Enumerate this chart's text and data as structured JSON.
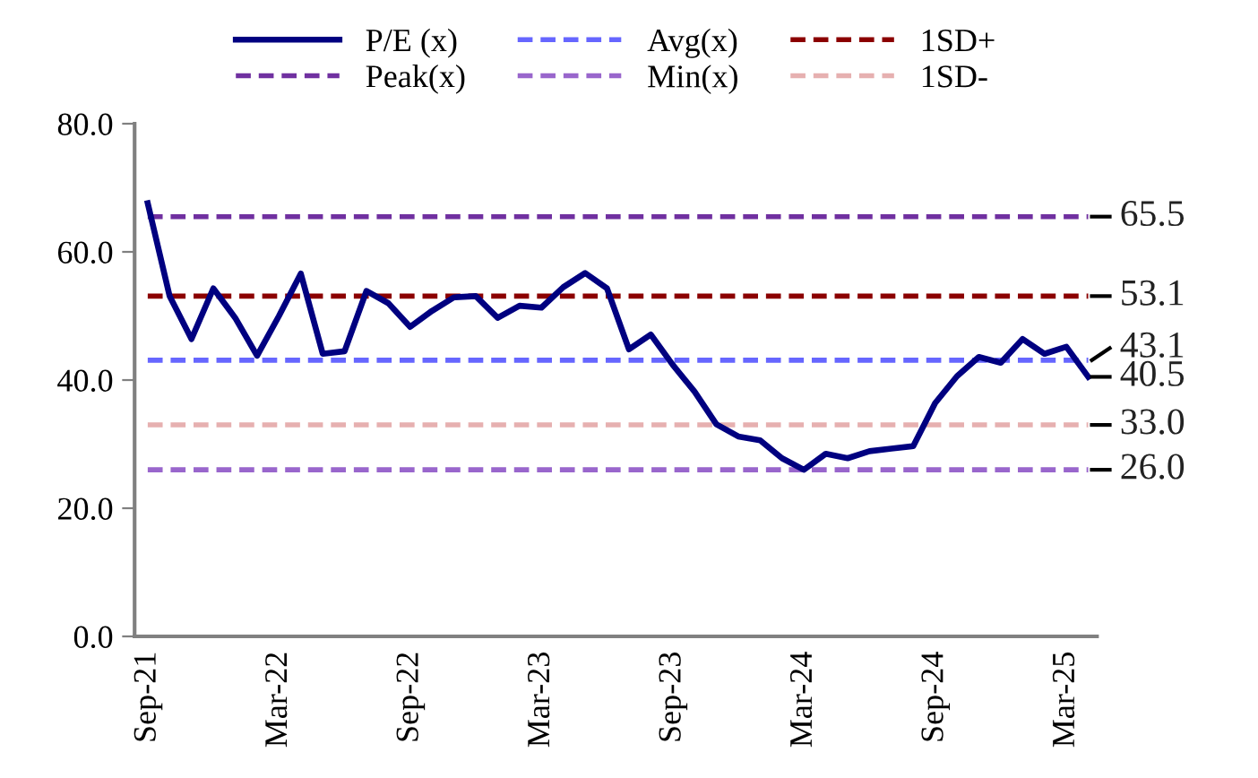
{
  "chart_data": {
    "type": "line",
    "categories": [
      "Sep-21",
      null,
      null,
      null,
      null,
      null,
      "Mar-22",
      null,
      null,
      null,
      null,
      null,
      "Sep-22",
      null,
      null,
      null,
      null,
      null,
      "Mar-23",
      null,
      null,
      null,
      null,
      null,
      "Sep-23",
      null,
      null,
      null,
      null,
      null,
      "Mar-24",
      null,
      null,
      null,
      null,
      null,
      "Sep-24",
      null,
      null,
      null,
      null,
      null,
      "Mar-25",
      null
    ],
    "series": [
      {
        "name": "P/E (x)",
        "color": "#000080",
        "line_style": "solid",
        "values": [
          67.6,
          53.1,
          46.4,
          54.3,
          49.7,
          43.8,
          50.0,
          56.6,
          44.1,
          44.5,
          53.9,
          52.0,
          48.3,
          50.8,
          52.9,
          53.1,
          49.7,
          51.6,
          51.3,
          54.5,
          56.7,
          54.3,
          44.8,
          47.1,
          42.4,
          38.2,
          33.1,
          31.2,
          30.6,
          27.8,
          26.0,
          28.5,
          27.8,
          28.9,
          29.3,
          29.7,
          36.4,
          40.6,
          43.6,
          42.7,
          46.4,
          44.1,
          45.2,
          40.5
        ],
        "value_labels": [
          null,
          null,
          null,
          null,
          null,
          null,
          null,
          null,
          null,
          null,
          null,
          null,
          null,
          null,
          null,
          null,
          null,
          null,
          null,
          null,
          null,
          null,
          null,
          null,
          null,
          null,
          null,
          null,
          null,
          null,
          null,
          null,
          null,
          null,
          null,
          null,
          null,
          null,
          null,
          null,
          null,
          null,
          null,
          "40.5"
        ]
      },
      {
        "name": "Peak(x)",
        "color": "#7030a0",
        "line_style": "dashed",
        "values": [
          65.5,
          65.5,
          65.5,
          65.5,
          65.5,
          65.5,
          65.5,
          65.5,
          65.5,
          65.5,
          65.5,
          65.5,
          65.5,
          65.5,
          65.5,
          65.5,
          65.5,
          65.5,
          65.5,
          65.5,
          65.5,
          65.5,
          65.5,
          65.5,
          65.5,
          65.5,
          65.5,
          65.5,
          65.5,
          65.5,
          65.5,
          65.5,
          65.5,
          65.5,
          65.5,
          65.5,
          65.5,
          65.5,
          65.5,
          65.5,
          65.5,
          65.5,
          65.5,
          65.5
        ],
        "value_labels": [
          null,
          null,
          null,
          null,
          null,
          null,
          null,
          null,
          null,
          null,
          null,
          null,
          null,
          null,
          null,
          null,
          null,
          null,
          null,
          null,
          null,
          null,
          null,
          null,
          null,
          null,
          null,
          null,
          null,
          null,
          null,
          null,
          null,
          null,
          null,
          null,
          null,
          null,
          null,
          null,
          null,
          null,
          null,
          "65.5"
        ]
      },
      {
        "name": "Avg(x)",
        "color": "#6666ff",
        "line_style": "dashed",
        "values": [
          43.1,
          43.1,
          43.1,
          43.1,
          43.1,
          43.1,
          43.1,
          43.1,
          43.1,
          43.1,
          43.1,
          43.1,
          43.1,
          43.1,
          43.1,
          43.1,
          43.1,
          43.1,
          43.1,
          43.1,
          43.1,
          43.1,
          43.1,
          43.1,
          43.1,
          43.1,
          43.1,
          43.1,
          43.1,
          43.1,
          43.1,
          43.1,
          43.1,
          43.1,
          43.1,
          43.1,
          43.1,
          43.1,
          43.1,
          43.1,
          43.1,
          43.1,
          43.1,
          43.1
        ],
        "value_labels": [
          null,
          null,
          null,
          null,
          null,
          null,
          null,
          null,
          null,
          null,
          null,
          null,
          null,
          null,
          null,
          null,
          null,
          null,
          null,
          null,
          null,
          null,
          null,
          null,
          null,
          null,
          null,
          null,
          null,
          null,
          null,
          null,
          null,
          null,
          null,
          null,
          null,
          null,
          null,
          null,
          null,
          null,
          null,
          "43.1"
        ]
      },
      {
        "name": "Min(x)",
        "color": "#9966cc",
        "line_style": "dashed",
        "values": [
          26.0,
          26.0,
          26.0,
          26.0,
          26.0,
          26.0,
          26.0,
          26.0,
          26.0,
          26.0,
          26.0,
          26.0,
          26.0,
          26.0,
          26.0,
          26.0,
          26.0,
          26.0,
          26.0,
          26.0,
          26.0,
          26.0,
          26.0,
          26.0,
          26.0,
          26.0,
          26.0,
          26.0,
          26.0,
          26.0,
          26.0,
          26.0,
          26.0,
          26.0,
          26.0,
          26.0,
          26.0,
          26.0,
          26.0,
          26.0,
          26.0,
          26.0,
          26.0,
          26.0
        ],
        "value_labels": [
          null,
          null,
          null,
          null,
          null,
          null,
          null,
          null,
          null,
          null,
          null,
          null,
          null,
          null,
          null,
          null,
          null,
          null,
          null,
          null,
          null,
          null,
          null,
          null,
          null,
          null,
          null,
          null,
          null,
          null,
          null,
          null,
          null,
          null,
          null,
          null,
          null,
          null,
          null,
          null,
          null,
          null,
          null,
          "26.0"
        ]
      },
      {
        "name": "1SD+",
        "color": "#8b0000",
        "line_style": "dashed",
        "values": [
          53.1,
          53.1,
          53.1,
          53.1,
          53.1,
          53.1,
          53.1,
          53.1,
          53.1,
          53.1,
          53.1,
          53.1,
          53.1,
          53.1,
          53.1,
          53.1,
          53.1,
          53.1,
          53.1,
          53.1,
          53.1,
          53.1,
          53.1,
          53.1,
          53.1,
          53.1,
          53.1,
          53.1,
          53.1,
          53.1,
          53.1,
          53.1,
          53.1,
          53.1,
          53.1,
          53.1,
          53.1,
          53.1,
          53.1,
          53.1,
          53.1,
          53.1,
          53.1,
          53.1
        ],
        "value_labels": [
          null,
          null,
          null,
          null,
          null,
          null,
          null,
          null,
          null,
          null,
          null,
          null,
          null,
          null,
          null,
          null,
          null,
          null,
          null,
          null,
          null,
          null,
          null,
          null,
          null,
          null,
          null,
          null,
          null,
          null,
          null,
          null,
          null,
          null,
          null,
          null,
          null,
          null,
          null,
          null,
          null,
          null,
          null,
          "53.1"
        ]
      },
      {
        "name": "1SD-",
        "color": "#e6b0b0",
        "line_style": "dashed",
        "values": [
          33.0,
          33.0,
          33.0,
          33.0,
          33.0,
          33.0,
          33.0,
          33.0,
          33.0,
          33.0,
          33.0,
          33.0,
          33.0,
          33.0,
          33.0,
          33.0,
          33.0,
          33.0,
          33.0,
          33.0,
          33.0,
          33.0,
          33.0,
          33.0,
          33.0,
          33.0,
          33.0,
          33.0,
          33.0,
          33.0,
          33.0,
          33.0,
          33.0,
          33.0,
          33.0,
          33.0,
          33.0,
          33.0,
          33.0,
          33.0,
          33.0,
          33.0,
          33.0,
          33.0
        ],
        "value_labels": [
          null,
          null,
          null,
          null,
          null,
          null,
          null,
          null,
          null,
          null,
          null,
          null,
          null,
          null,
          null,
          null,
          null,
          null,
          null,
          null,
          null,
          null,
          null,
          null,
          null,
          null,
          null,
          null,
          null,
          null,
          null,
          null,
          null,
          null,
          null,
          null,
          null,
          null,
          null,
          null,
          null,
          null,
          null,
          "33.0"
        ]
      }
    ],
    "ylim": [
      0,
      80
    ],
    "yticks": [
      {
        "value": 0,
        "label": "0.0"
      },
      {
        "value": 20,
        "label": "20.0"
      },
      {
        "value": 40,
        "label": "40.0"
      },
      {
        "value": 60,
        "label": "60.0"
      },
      {
        "value": 80,
        "label": "80.0"
      }
    ],
    "legend": "top",
    "marker": "none"
  }
}
